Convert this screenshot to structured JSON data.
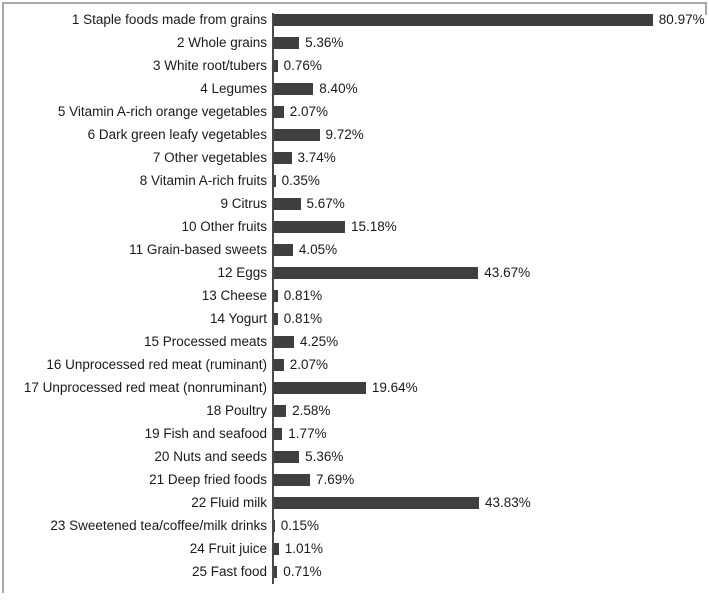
{
  "chart_data": {
    "type": "bar",
    "orientation": "horizontal",
    "title": "",
    "xlabel": "",
    "ylabel": "",
    "xlim": [
      0,
      90
    ],
    "grid": false,
    "legend": false,
    "bar_color": "#3f3f3f",
    "axis_color": "#4a4a4a",
    "text_color": "#1a1a1a",
    "frame_border_color": "#a9a9a9",
    "categories": [
      "1 Staple foods made from grains",
      "2 Whole grains",
      "3 White root/tubers",
      "4 Legumes",
      "5 Vitamin A-rich orange vegetables",
      "6 Dark green leafy vegetables",
      "7 Other vegetables",
      "8 Vitamin A-rich fruits",
      "9 Citrus",
      "10 Other fruits",
      "11 Grain-based sweets",
      "12 Eggs",
      "13 Cheese",
      "14 Yogurt",
      "15 Processed meats",
      "16 Unprocessed red meat (ruminant)",
      "17 Unprocessed red meat (nonruminant)",
      "18 Poultry",
      "19 Fish and seafood",
      "20 Nuts and seeds",
      "21 Deep fried foods",
      "22 Fluid milk",
      "23 Sweetened tea/coffee/milk drinks",
      "24 Fruit juice",
      "25 Fast food"
    ],
    "values": [
      80.97,
      5.36,
      0.76,
      8.4,
      2.07,
      9.72,
      3.74,
      0.35,
      5.67,
      15.18,
      4.05,
      43.67,
      0.81,
      0.81,
      4.25,
      2.07,
      19.64,
      2.58,
      1.77,
      5.36,
      7.69,
      43.83,
      0.15,
      1.01,
      0.71
    ],
    "value_labels": [
      "80.97%",
      "5.36%",
      "0.76%",
      "8.40%",
      "2.07%",
      "9.72%",
      "3.74%",
      "0.35%",
      "5.67%",
      "15.18%",
      "4.05%",
      "43.67%",
      "0.81%",
      "0.81%",
      "4.25%",
      "2.07%",
      "19.64%",
      "2.58%",
      "1.77%",
      "5.36%",
      "7.69%",
      "43.83%",
      "0.15%",
      "1.01%",
      "0.71%"
    ]
  }
}
